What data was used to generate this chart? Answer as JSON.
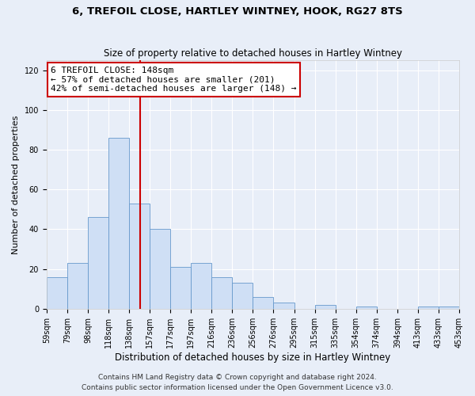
{
  "title": "6, TREFOIL CLOSE, HARTLEY WINTNEY, HOOK, RG27 8TS",
  "subtitle": "Size of property relative to detached houses in Hartley Wintney",
  "xlabel": "Distribution of detached houses by size in Hartley Wintney",
  "ylabel": "Number of detached properties",
  "bar_heights": [
    16,
    23,
    46,
    86,
    53,
    40,
    21,
    23,
    16,
    13,
    6,
    3,
    0,
    2,
    0,
    1,
    0,
    0,
    1,
    1
  ],
  "tick_labels": [
    "59sqm",
    "79sqm",
    "98sqm",
    "118sqm",
    "138sqm",
    "157sqm",
    "177sqm",
    "197sqm",
    "216sqm",
    "236sqm",
    "256sqm",
    "276sqm",
    "295sqm",
    "315sqm",
    "335sqm",
    "354sqm",
    "374sqm",
    "394sqm",
    "413sqm",
    "433sqm",
    "453sqm"
  ],
  "bar_color": "#cfdff5",
  "bar_edge_color": "#6699cc",
  "vline_color": "#cc0000",
  "vline_pos": 4.526,
  "annotation_title": "6 TREFOIL CLOSE: 148sqm",
  "annotation_line1": "← 57% of detached houses are smaller (201)",
  "annotation_line2": "42% of semi-detached houses are larger (148) →",
  "annotation_box_color": "#ffffff",
  "annotation_box_edge": "#cc0000",
  "ylim": [
    0,
    125
  ],
  "yticks": [
    0,
    20,
    40,
    60,
    80,
    100,
    120
  ],
  "footer1": "Contains HM Land Registry data © Crown copyright and database right 2024.",
  "footer2": "Contains public sector information licensed under the Open Government Licence v3.0.",
  "bg_color": "#e8eef8",
  "plot_bg_color": "#e8eef8",
  "grid_color": "#ffffff",
  "title_fontsize": 9.5,
  "subtitle_fontsize": 8.5,
  "xlabel_fontsize": 8.5,
  "ylabel_fontsize": 8,
  "tick_fontsize": 7,
  "annotation_fontsize": 8,
  "footer_fontsize": 6.5
}
